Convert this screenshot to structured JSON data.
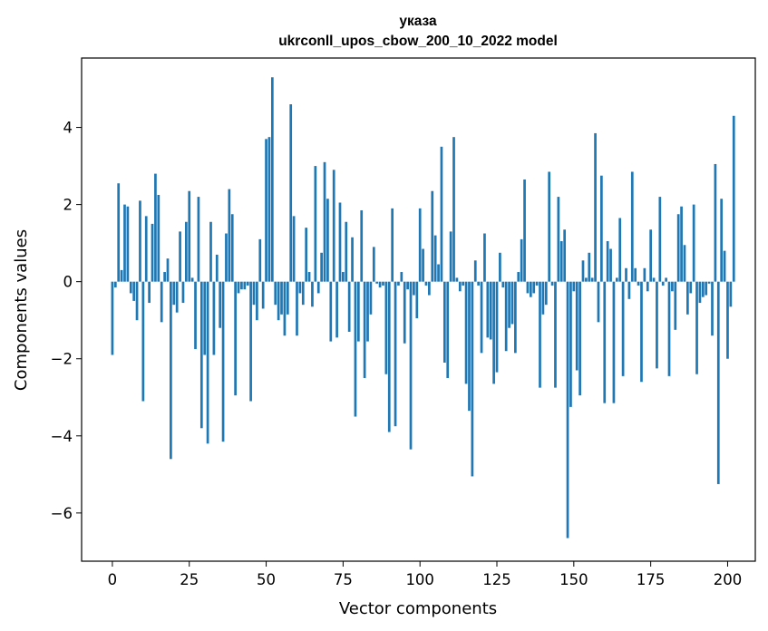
{
  "chart_data": {
    "type": "bar",
    "title_lines": [
      "указа",
      "ukrconll_upos_cbow_200_10_2022 model"
    ],
    "xlabel": "Vector components",
    "ylabel": "Components values",
    "xlim": [
      -10,
      209
    ],
    "ylim": [
      -7.25,
      5.8
    ],
    "x_ticks": [
      0,
      25,
      50,
      75,
      100,
      125,
      150,
      175,
      200
    ],
    "y_ticks": [
      -6,
      -4,
      -2,
      0,
      2,
      4
    ],
    "y_tick_labels": [
      "−6",
      "−4",
      "−2",
      "0",
      "2",
      "4"
    ],
    "bar_color": "#1f77b4",
    "grid": false,
    "legend": "none",
    "values": [
      -1.9,
      -0.15,
      2.55,
      0.3,
      2.0,
      1.95,
      -0.3,
      -0.5,
      -1.0,
      2.1,
      -3.1,
      1.7,
      -0.55,
      1.5,
      2.8,
      2.25,
      -1.05,
      0.25,
      0.6,
      -4.6,
      -0.6,
      -0.8,
      1.3,
      -0.55,
      1.55,
      2.35,
      0.1,
      -1.75,
      2.2,
      -3.8,
      -1.9,
      -4.2,
      1.55,
      -1.9,
      0.7,
      -1.2,
      -4.15,
      1.25,
      2.4,
      1.75,
      -2.95,
      -0.3,
      -0.2,
      -0.2,
      -0.1,
      -3.1,
      -0.6,
      -1.0,
      1.1,
      -0.7,
      3.7,
      3.75,
      5.3,
      -0.6,
      -1.0,
      -0.85,
      -1.4,
      -0.85,
      4.6,
      1.7,
      -1.4,
      -0.3,
      -0.6,
      1.4,
      0.25,
      -0.65,
      3.0,
      -0.3,
      0.75,
      3.1,
      2.15,
      -1.55,
      2.9,
      -1.45,
      2.05,
      0.25,
      1.55,
      -1.3,
      1.15,
      -3.5,
      -1.55,
      1.85,
      -2.5,
      -1.55,
      -0.85,
      0.9,
      -0.05,
      -0.15,
      -0.1,
      -2.4,
      -3.9,
      1.9,
      -3.75,
      -0.1,
      0.25,
      -1.6,
      -0.2,
      -4.35,
      -0.35,
      -0.95,
      1.9,
      0.85,
      -0.1,
      -0.35,
      2.35,
      1.2,
      0.45,
      3.5,
      -2.1,
      -2.5,
      1.3,
      3.75,
      0.1,
      -0.25,
      -0.1,
      -2.65,
      -3.35,
      -5.05,
      0.55,
      -0.1,
      -1.85,
      1.25,
      -1.45,
      -1.5,
      -2.65,
      -2.35,
      0.75,
      -0.15,
      -1.8,
      -1.2,
      -1.1,
      -1.85,
      0.25,
      1.1,
      2.65,
      -0.3,
      -0.4,
      -0.3,
      -0.1,
      -2.75,
      -0.85,
      -0.6,
      2.85,
      -0.1,
      -2.75,
      2.2,
      1.05,
      1.35,
      -6.65,
      -3.25,
      -0.25,
      -2.3,
      -2.95,
      0.55,
      0.1,
      0.75,
      0.1,
      3.85,
      -1.05,
      2.75,
      -3.15,
      1.05,
      0.85,
      -3.15,
      0.1,
      1.65,
      -2.45,
      0.35,
      -0.45,
      2.85,
      0.35,
      -0.1,
      -2.6,
      0.35,
      -0.25,
      1.35,
      0.1,
      -2.25,
      2.2,
      -0.1,
      0.1,
      -2.45,
      -0.25,
      -1.25,
      1.75,
      1.95,
      0.95,
      -0.85,
      -0.3,
      2.0,
      -2.4,
      -0.55,
      -0.4,
      -0.35,
      -0.05,
      -1.4,
      3.05,
      -5.25,
      2.15,
      0.8,
      -2.0,
      -0.65,
      4.3
    ]
  }
}
